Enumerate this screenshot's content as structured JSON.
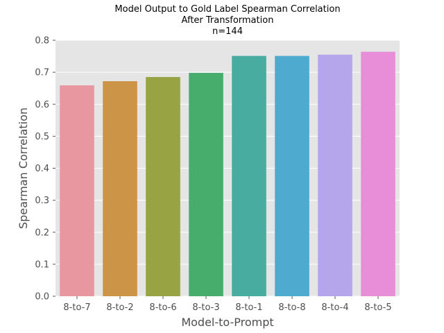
{
  "chart_data": {
    "type": "bar",
    "title": [
      "Model Output to Gold Label Spearman Correlation",
      "After Transformation",
      "n=144"
    ],
    "xlabel": "Model-to-Prompt",
    "ylabel": "Spearman Correlation",
    "categories": [
      "8-to-7",
      "8-to-2",
      "8-to-6",
      "8-to-3",
      "8-to-1",
      "8-to-8",
      "8-to-4",
      "8-to-5"
    ],
    "values": [
      0.659,
      0.672,
      0.685,
      0.698,
      0.751,
      0.751,
      0.755,
      0.764
    ],
    "colors": [
      "#e8969f",
      "#cc9446",
      "#98a344",
      "#46ad6c",
      "#48aca0",
      "#4eaacf",
      "#b5a5ea",
      "#e88ed8"
    ],
    "ylim": [
      0,
      0.8
    ],
    "yticks": [
      0.0,
      0.1,
      0.2,
      0.3,
      0.4,
      0.5,
      0.6,
      0.7,
      0.8
    ],
    "ytick_labels": [
      "0.0",
      "0.1",
      "0.2",
      "0.3",
      "0.4",
      "0.5",
      "0.6",
      "0.7",
      "0.8"
    ],
    "grid": true,
    "background": "#e5e5e5",
    "grid_color": "#ffffff"
  }
}
